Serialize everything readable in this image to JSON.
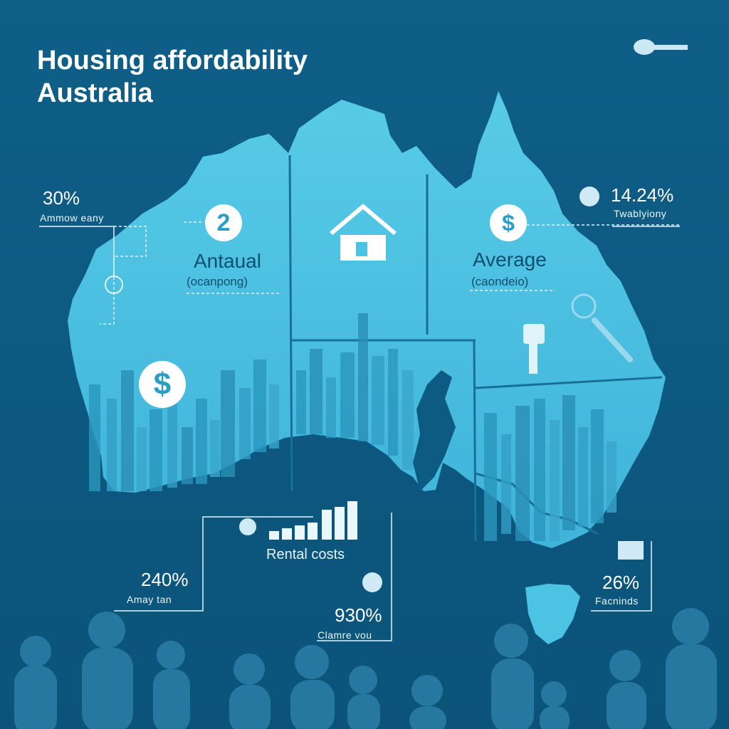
{
  "title": {
    "line1": "Housing affordability",
    "line2": "Australia"
  },
  "stats": {
    "left_top": {
      "value": "30%",
      "caption": "Ammow eany"
    },
    "right_top": {
      "value": "14.24%",
      "caption": "Twablyiony"
    },
    "left_bottom": {
      "value": "240%",
      "caption": "Amay tan"
    },
    "center_bottom": {
      "value": "930%",
      "caption": "Clamre vou"
    },
    "right_bottom": {
      "value": "26%",
      "caption": "Facninds"
    }
  },
  "map_labels": {
    "annual": {
      "label": "Antaual",
      "sub": "(ocanpong)"
    },
    "average": {
      "label": "Average",
      "sub": "(caondeio)"
    }
  },
  "icons": {
    "badge_number": "2",
    "dollar": "$",
    "names": [
      "key-icon",
      "house-icon",
      "dollar-icon",
      "bar-chart-icon",
      "people-silhouettes",
      "pin-icon"
    ]
  },
  "rental": {
    "label": "Rental costs"
  },
  "colors": {
    "background": "#0d5a82",
    "map_fill": "#4cc3e3",
    "map_dark": "#2a97bd",
    "accent_white": "#ffffff",
    "silhouette": "#2d7fa8"
  }
}
